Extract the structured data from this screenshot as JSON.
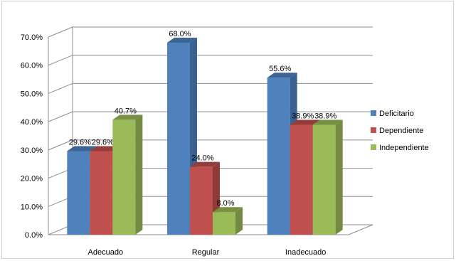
{
  "chart_data": {
    "type": "bar",
    "categories": [
      "Adecuado",
      "Regular",
      "Inadecuado"
    ],
    "series": [
      {
        "name": "Deficitario",
        "values": [
          29.6,
          68.0,
          55.6
        ],
        "color": "#4f81bd",
        "side": "#3a6291",
        "top": "#3c6594"
      },
      {
        "name": "Dependiente",
        "values": [
          29.6,
          24.0,
          38.9
        ],
        "color": "#c0504d",
        "side": "#8e3b39",
        "top": "#943e3b"
      },
      {
        "name": "Independiente",
        "values": [
          40.7,
          8.0,
          38.9
        ],
        "color": "#9bbb59",
        "side": "#728a41",
        "top": "#779043"
      }
    ],
    "data_labels": [
      [
        "29.6%",
        "68.0%",
        "55.6%"
      ],
      [
        "29.6%",
        "24.0%",
        "38.9%"
      ],
      [
        "40.7%",
        "8.0%",
        "38.9%"
      ]
    ],
    "y_ticks": [
      "0.0%",
      "10.0%",
      "20.0%",
      "30.0%",
      "40.0%",
      "50.0%",
      "60.0%",
      "70.0%"
    ],
    "ylim": [
      0,
      70
    ],
    "grid": true,
    "legend_position": "right",
    "title": "",
    "xlabel": "",
    "ylabel": ""
  }
}
